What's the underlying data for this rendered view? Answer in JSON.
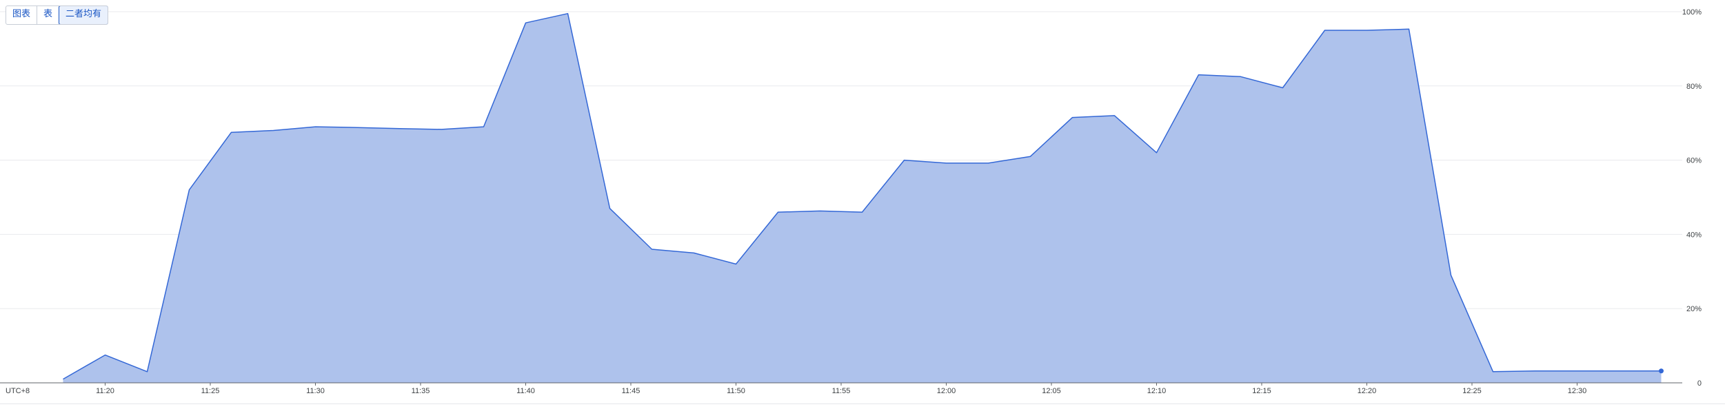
{
  "view_tabs": {
    "chart_label": "图表",
    "table_label": "表",
    "both_label": "二者均有",
    "selected": "both"
  },
  "colors": {
    "fill": "#aec2ec",
    "line": "#3367d6",
    "grid": "#e8eaed",
    "axis": "#5f6368",
    "tab_accent": "#1a56c4"
  },
  "chart_data": {
    "type": "area",
    "title": "",
    "xlabel": "",
    "ylabel": "",
    "timezone_label": "UTC+8",
    "x_ticks": [
      "11:20",
      "11:25",
      "11:30",
      "11:35",
      "11:40",
      "11:45",
      "11:50",
      "11:55",
      "12:00",
      "12:05",
      "12:10",
      "12:15",
      "12:20",
      "12:25",
      "12:30"
    ],
    "x_range": [
      "11:15",
      "12:35"
    ],
    "y_ticks": [
      "0",
      "20%",
      "40%",
      "60%",
      "80%",
      "100%"
    ],
    "ylim": [
      0,
      100
    ],
    "y_axis_side": "right",
    "grid": true,
    "legend": "none",
    "series": [
      {
        "times": [
          "11:18",
          "11:20",
          "11:22",
          "11:24",
          "11:26",
          "11:28",
          "11:30",
          "11:32",
          "11:34",
          "11:36",
          "11:38",
          "11:40",
          "11:42",
          "11:44",
          "11:46",
          "11:48",
          "11:50",
          "11:52",
          "11:54",
          "11:56",
          "11:58",
          "12:00",
          "12:02",
          "12:04",
          "12:06",
          "12:08",
          "12:10",
          "12:12",
          "12:14",
          "12:16",
          "12:18",
          "12:20",
          "12:22",
          "12:24",
          "12:26",
          "12:28",
          "12:30",
          "12:32",
          "12:34"
        ],
        "values": [
          1,
          7.5,
          3,
          52,
          67.5,
          68,
          69,
          68.8,
          68.5,
          68.3,
          69,
          97,
          99.5,
          47,
          36,
          35,
          32,
          46,
          46.3,
          46,
          60,
          59.2,
          59.2,
          61,
          71.5,
          72,
          62,
          83,
          82.5,
          79.5,
          95,
          95,
          95.3,
          29,
          3,
          3.2,
          3.2,
          3.2,
          3.2
        ]
      }
    ]
  }
}
